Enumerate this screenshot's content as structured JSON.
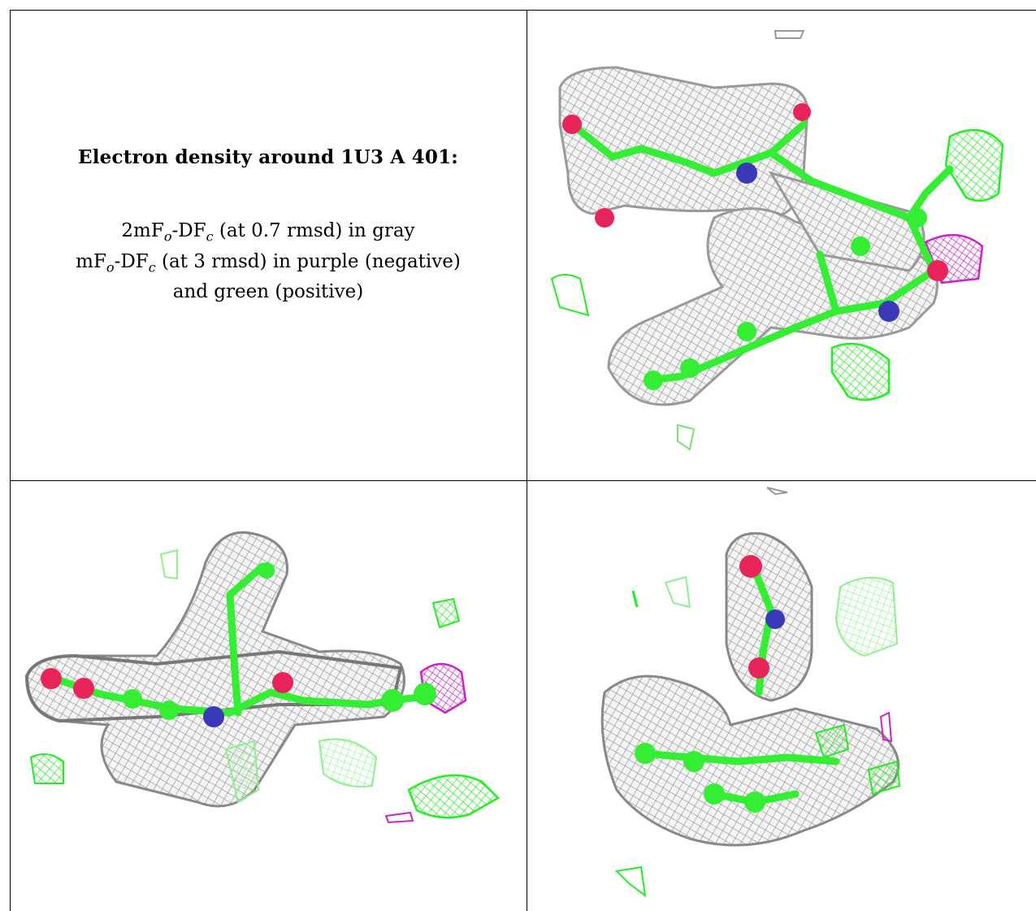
{
  "heading": "Electron density around 1U3 A 401:",
  "legend": {
    "line1_pre": "2mF",
    "line1_o": "o",
    "line1_mid": "-DF",
    "line1_c": "c",
    "line1_post": " (at 0.7 rmsd) in gray",
    "line2_pre": "mF",
    "line2_o": "o",
    "line2_mid": "-DF",
    "line2_c": "c",
    "line2_post": " (at 3 rmsd) in purple (negative)",
    "line3": "and green (positive)"
  },
  "colors": {
    "mesh_gray": "#a9a9a9",
    "carbon_green": "#33ee33",
    "positive_green": "#22ee22",
    "negative_purple": "#cc22cc",
    "oxygen": "#e8245a",
    "nitrogen": "#3a3ab8"
  }
}
